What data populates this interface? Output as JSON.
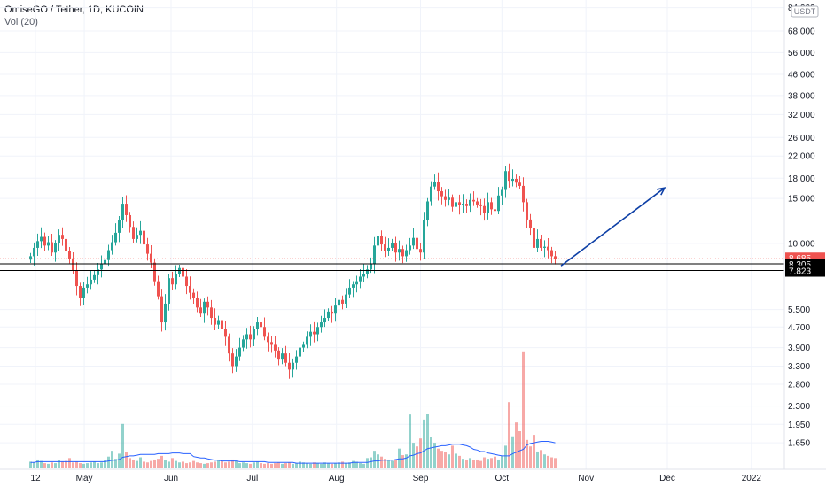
{
  "header": {
    "symbol_line": "OmiseGO / Tether, 1D, KUCOIN",
    "volume_line": "Vol (20)",
    "currency_badge": "USDT"
  },
  "chart_data": {
    "type": "candlestick",
    "scale": "log",
    "ylim": [
      1.3,
      90
    ],
    "y_ticks": [
      "84.000",
      "68.000",
      "56.000",
      "46.000",
      "38.000",
      "32.000",
      "26.000",
      "22.000",
      "18.000",
      "15.000",
      "10.000",
      "5.500",
      "4.700",
      "3.900",
      "3.300",
      "2.800",
      "2.300",
      "1.950",
      "1.650"
    ],
    "x_ticks": [
      "12",
      "May",
      "Jun",
      "Jul",
      "Aug",
      "Sep",
      "Oct",
      "Nov",
      "Dec",
      "2022"
    ],
    "x_range_days": [
      0,
      270
    ],
    "x_tick_days": [
      0,
      18,
      50,
      80,
      111,
      142,
      172,
      203,
      233,
      264
    ],
    "candles_close": [
      8.9,
      9.6,
      10.2,
      10.6,
      9.8,
      10.1,
      9.2,
      10.0,
      10.8,
      10.4,
      9.3,
      8.7,
      7.8,
      6.8,
      6.1,
      6.7,
      6.9,
      7.2,
      7.5,
      7.9,
      8.3,
      8.6,
      9.4,
      10.1,
      11.0,
      12.3,
      14.3,
      12.9,
      11.6,
      10.4,
      10.8,
      11.2,
      9.9,
      9.1,
      8.4,
      7.1,
      6.2,
      4.9,
      5.8,
      7.3,
      6.9,
      7.6,
      8.0,
      7.4,
      6.8,
      6.4,
      6.1,
      5.6,
      5.3,
      5.9,
      5.6,
      5.1,
      4.8,
      5.0,
      4.6,
      4.3,
      3.7,
      3.3,
      3.6,
      3.9,
      4.2,
      4.4,
      4.2,
      4.6,
      4.9,
      4.7,
      4.3,
      4.1,
      4.0,
      3.8,
      3.5,
      3.7,
      3.4,
      3.2,
      3.4,
      3.6,
      3.9,
      4.0,
      4.3,
      4.5,
      4.4,
      4.7,
      4.9,
      5.1,
      5.4,
      5.3,
      5.7,
      6.0,
      5.8,
      6.3,
      6.7,
      6.9,
      7.1,
      7.4,
      7.6,
      7.9,
      8.3,
      9.8,
      10.7,
      9.9,
      9.3,
      9.6,
      10.0,
      9.2,
      9.5,
      8.9,
      9.4,
      9.8,
      10.5,
      9.5,
      9.2,
      12.3,
      14.6,
      16.7,
      17.4,
      16.0,
      15.3,
      14.8,
      15.1,
      13.9,
      14.5,
      14.1,
      14.3,
      14.0,
      14.8,
      14.6,
      14.2,
      14.0,
      13.2,
      14.5,
      13.6,
      13.4,
      15.4,
      16.2,
      19.2,
      17.6,
      17.9,
      17.3,
      16.8,
      14.5,
      12.4,
      11.5,
      9.6,
      10.4,
      9.6,
      9.7,
      9.4,
      8.9,
      8.7
    ],
    "close_last": "8.685",
    "countdown": "08:56:59",
    "levels": [
      {
        "value": 8.305,
        "label": "8.305"
      },
      {
        "value": 7.823,
        "label": "7.823"
      }
    ],
    "volume": [
      0.8,
      0.7,
      1.1,
      0.9,
      0.6,
      0.5,
      0.7,
      0.6,
      1.0,
      0.8,
      0.9,
      1.3,
      0.7,
      0.8,
      0.6,
      0.5,
      0.6,
      0.7,
      0.8,
      0.6,
      0.7,
      1.0,
      1.5,
      2.3,
      1.2,
      1.9,
      6.0,
      2.1,
      1.3,
      1.1,
      0.9,
      1.4,
      0.8,
      0.7,
      0.9,
      1.1,
      1.2,
      1.6,
      1.0,
      0.8,
      1.3,
      0.9,
      0.7,
      0.8,
      0.6,
      0.7,
      0.9,
      0.7,
      0.6,
      0.5,
      0.6,
      0.7,
      0.8,
      1.0,
      0.9,
      0.7,
      0.8,
      1.1,
      0.9,
      0.6,
      0.7,
      0.6,
      0.5,
      0.7,
      0.8,
      0.6,
      0.5,
      0.6,
      0.5,
      0.6,
      0.7,
      0.5,
      0.6,
      0.7,
      0.5,
      0.6,
      0.8,
      0.7,
      0.6,
      0.5,
      0.7,
      0.6,
      0.5,
      0.7,
      0.6,
      0.5,
      0.6,
      0.7,
      0.8,
      0.6,
      0.7,
      0.9,
      0.8,
      0.6,
      0.5,
      1.3,
      1.4,
      2.3,
      1.8,
      1.5,
      1.2,
      1.1,
      0.9,
      1.0,
      2.6,
      1.7,
      1.8,
      7.3,
      3.4,
      2.9,
      4.0,
      6.6,
      7.4,
      4.2,
      3.4,
      2.6,
      2.3,
      2.1,
      1.8,
      3.0,
      1.9,
      1.6,
      1.2,
      1.1,
      1.3,
      1.0,
      1.1,
      0.9,
      1.4,
      1.2,
      1.3,
      1.5,
      1.1,
      1.6,
      3.0,
      9.0,
      4.3,
      6.2,
      5.0,
      16.0,
      3.8,
      2.9,
      4.5,
      2.2,
      2.4,
      1.8,
      1.6,
      1.4,
      1.3
    ],
    "volume_ma": [
      0.7,
      0.7,
      0.8,
      0.8,
      0.8,
      0.8,
      0.8,
      0.8,
      0.8,
      0.8,
      0.8,
      0.8,
      0.8,
      0.8,
      0.8,
      0.8,
      0.8,
      0.8,
      0.8,
      0.8,
      0.8,
      0.8,
      0.9,
      1.0,
      1.0,
      1.1,
      1.4,
      1.5,
      1.6,
      1.6,
      1.7,
      1.8,
      1.8,
      1.8,
      1.8,
      1.8,
      1.9,
      1.9,
      1.9,
      1.9,
      2.0,
      2.0,
      2.0,
      1.9,
      1.9,
      1.9,
      1.5,
      1.4,
      1.3,
      1.3,
      1.2,
      1.1,
      1.0,
      1.0,
      0.9,
      0.9,
      0.9,
      0.9,
      0.9,
      0.8,
      0.8,
      0.8,
      0.8,
      0.8,
      0.8,
      0.8,
      0.8,
      0.7,
      0.7,
      0.7,
      0.7,
      0.7,
      0.7,
      0.7,
      0.7,
      0.6,
      0.6,
      0.6,
      0.6,
      0.6,
      0.6,
      0.6,
      0.6,
      0.6,
      0.6,
      0.6,
      0.6,
      0.6,
      0.6,
      0.6,
      0.6,
      0.7,
      0.7,
      0.7,
      0.7,
      0.7,
      0.8,
      0.9,
      0.9,
      1.0,
      1.0,
      1.0,
      1.0,
      1.1,
      1.2,
      1.2,
      1.3,
      1.6,
      1.7,
      1.9,
      2.0,
      2.3,
      2.6,
      2.7,
      2.8,
      2.9,
      3.0,
      3.0,
      3.1,
      3.2,
      3.2,
      3.2,
      3.1,
      3.0,
      2.8,
      2.5,
      2.4,
      2.2,
      2.2,
      2.0,
      1.9,
      1.8,
      1.7,
      1.6,
      1.6,
      1.6,
      1.9,
      2.1,
      2.3,
      2.5,
      3.1,
      3.3,
      3.4,
      3.5,
      3.6,
      3.6,
      3.6,
      3.5,
      3.4
    ],
    "arrow_target": {
      "day": 232,
      "value": 16.5
    },
    "colors": {
      "up": "#26a69a",
      "down": "#ef5350",
      "ma": "#2962ff",
      "arrow": "#0d3fa6",
      "close_tag": "#ef5350",
      "level_tag": "#000000"
    }
  }
}
